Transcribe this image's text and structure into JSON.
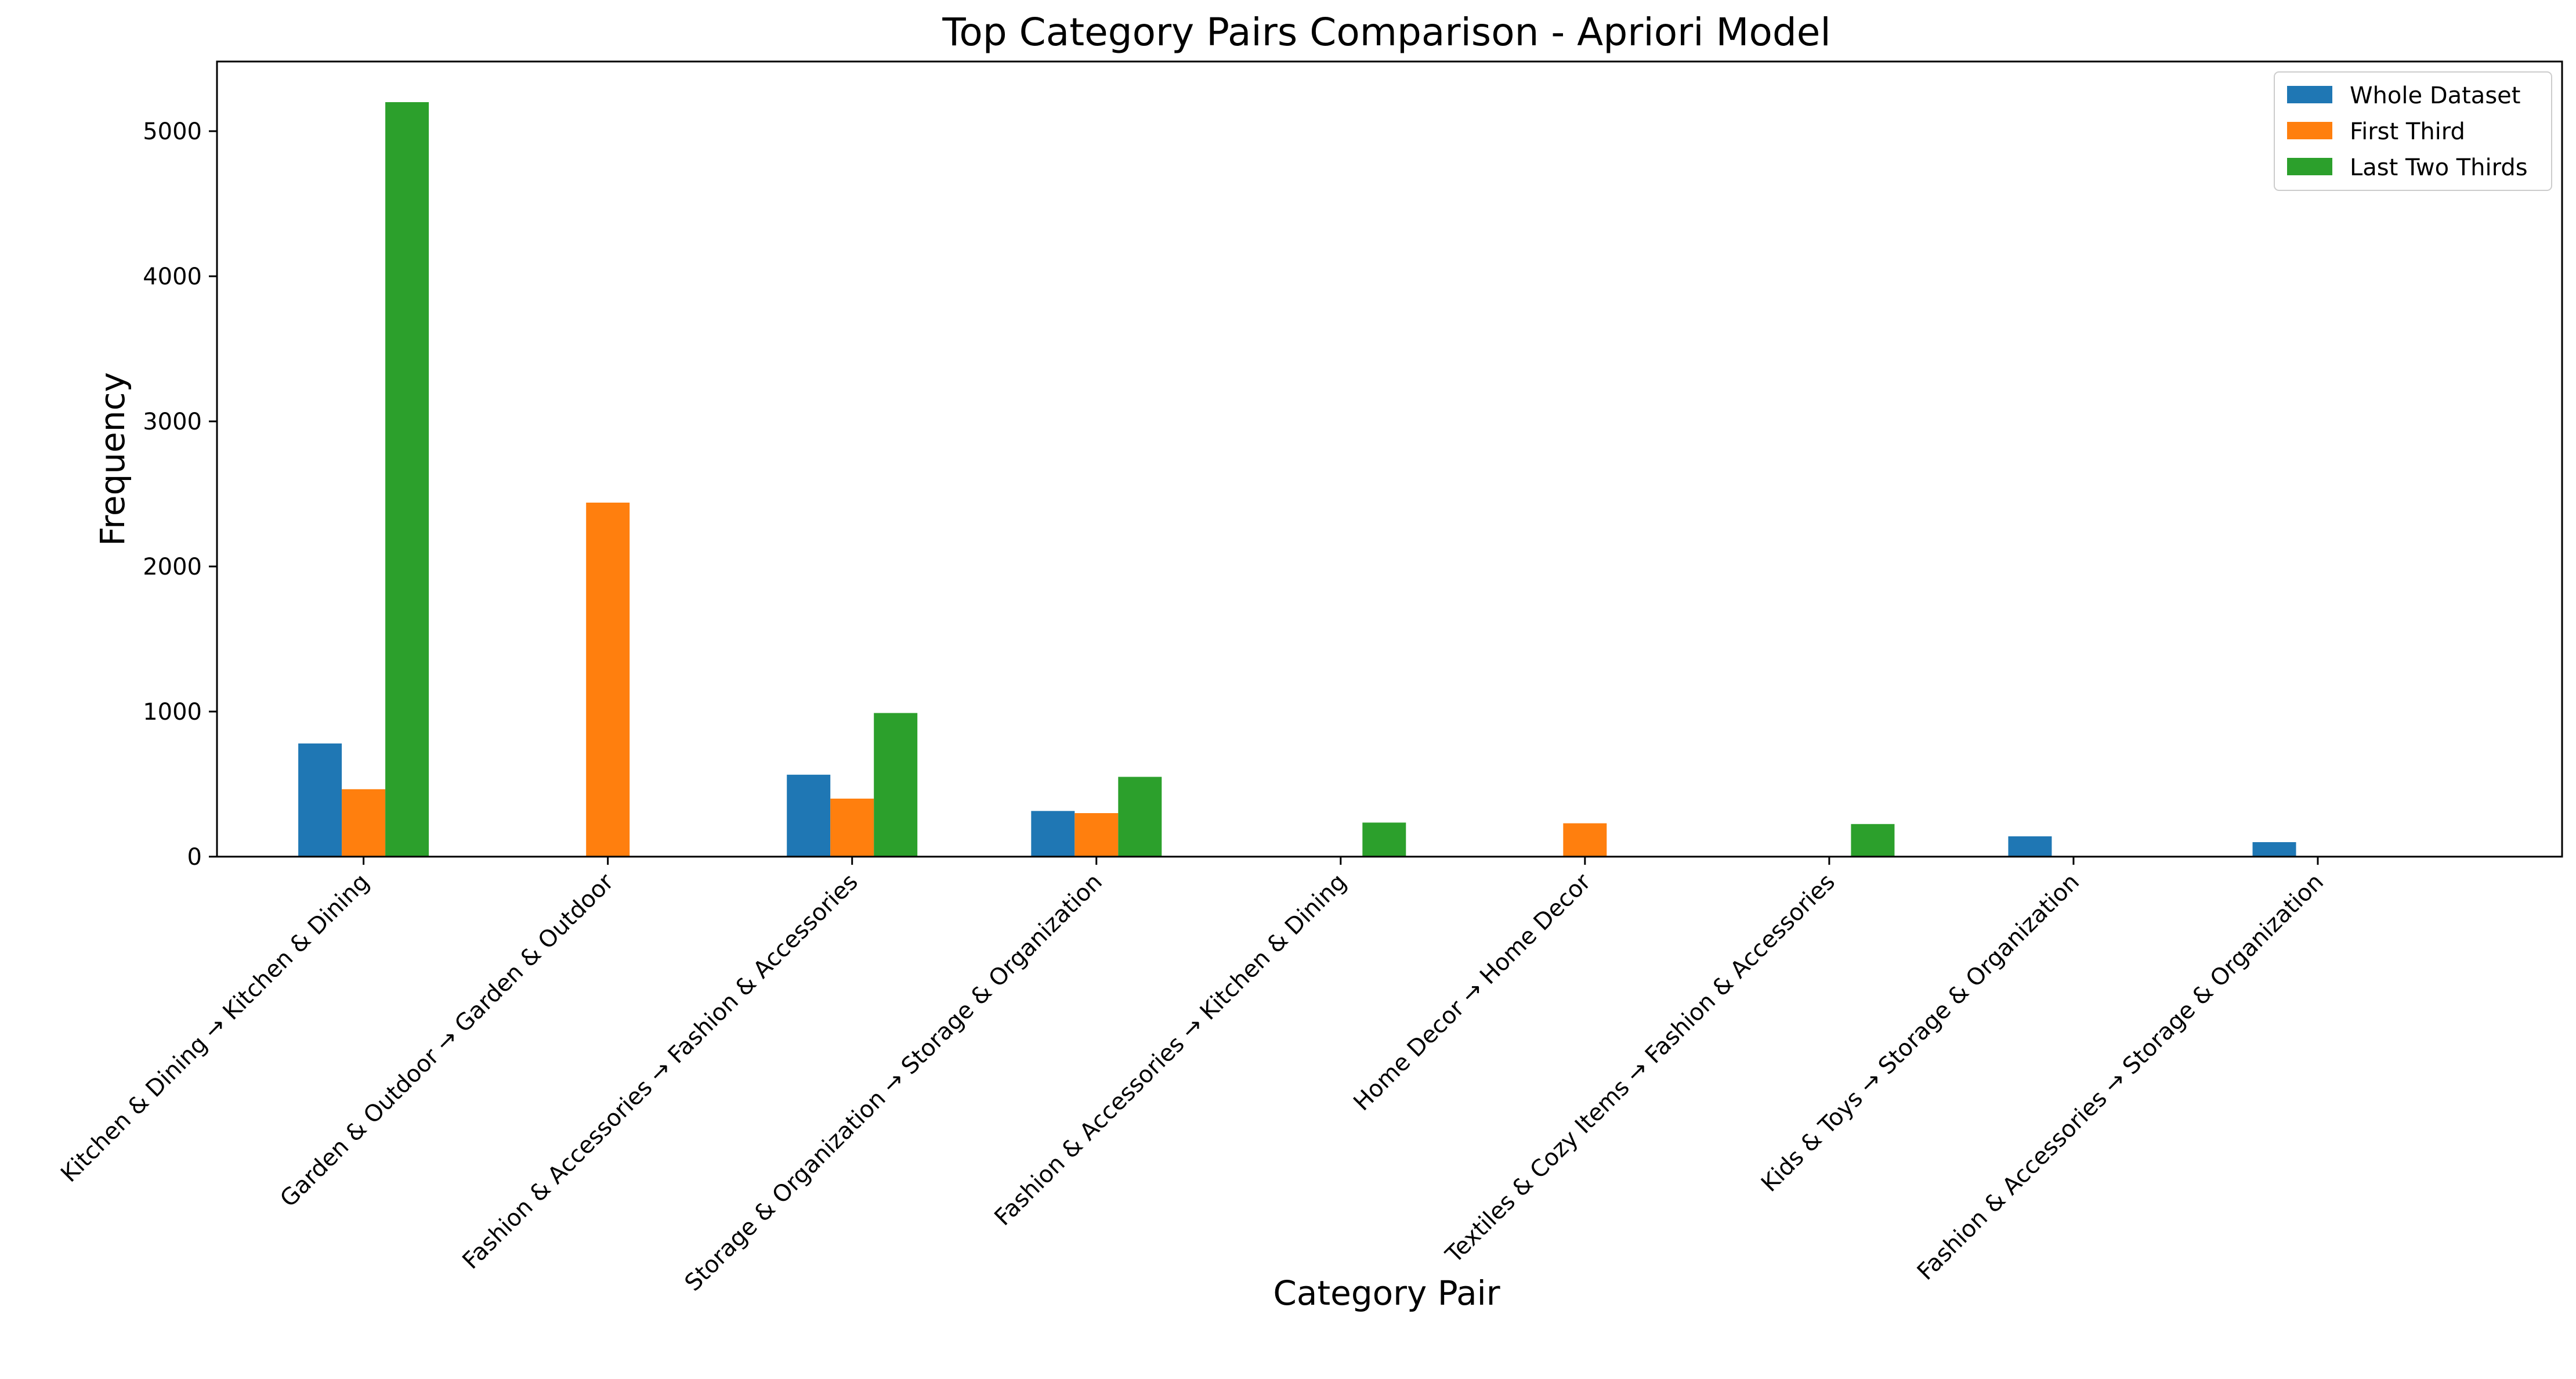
{
  "chart_data": {
    "type": "bar",
    "title": "Top Category Pairs Comparison - Apriori Model",
    "xlabel": "Category Pair",
    "ylabel": "Frequency",
    "ylim": [
      0,
      5480
    ],
    "yticks": [
      0,
      1000,
      2000,
      3000,
      4000,
      5000
    ],
    "ytick_labels": [
      "0",
      "1000",
      "2000",
      "3000",
      "4000",
      "5000"
    ],
    "grid": false,
    "legend_position": "top-right",
    "categories": [
      "Kitchen & Dining → Kitchen & Dining",
      "Garden & Outdoor → Garden & Outdoor",
      "Fashion & Accessories → Fashion & Accessories",
      "Storage & Organization → Storage & Organization",
      "Fashion & Accessories → Kitchen & Dining",
      "Home Decor → Home Decor",
      "Textiles & Cozy Items → Fashion & Accessories",
      "Kids & Toys → Storage & Organization",
      "Fashion & Accessories → Storage & Organization"
    ],
    "series": [
      {
        "name": "Whole Dataset",
        "color": "#1f77b4",
        "values": [
          780,
          0,
          565,
          315,
          0,
          0,
          0,
          140,
          100
        ]
      },
      {
        "name": "First Third",
        "color": "#ff7f0e",
        "values": [
          465,
          2440,
          400,
          300,
          0,
          230,
          0,
          0,
          0
        ]
      },
      {
        "name": "Last Two Thirds",
        "color": "#2ca02c",
        "values": [
          5200,
          0,
          990,
          550,
          235,
          0,
          225,
          0,
          0
        ]
      }
    ]
  }
}
